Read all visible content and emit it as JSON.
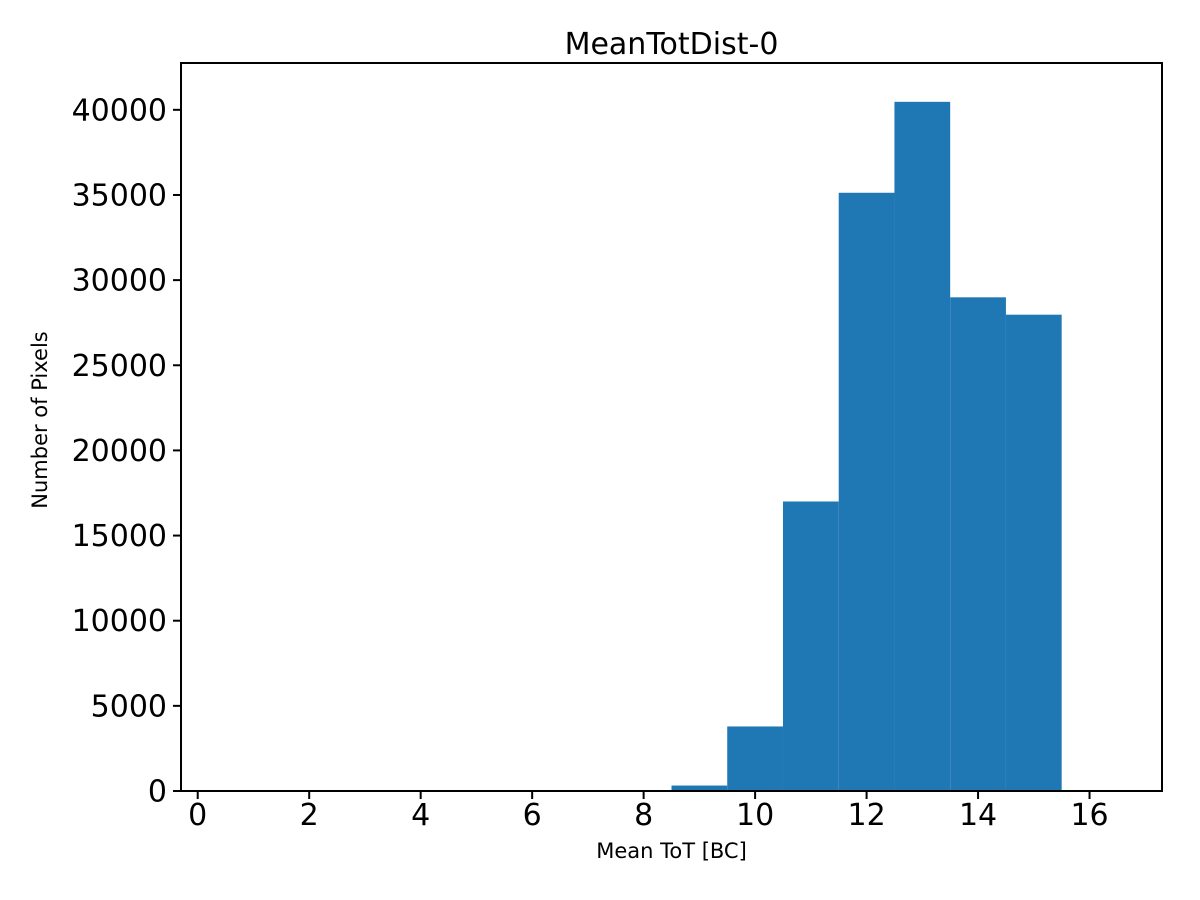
{
  "figure": {
    "background_color": "#ffffff",
    "text_color": "#000000"
  },
  "chart_data": {
    "type": "bar",
    "subtype": "histogram",
    "title": "MeanTotDist-0",
    "xlabel": "Mean ToT [BC]",
    "ylabel": "Number of Pixels",
    "bar_color": "#1f77b4",
    "axis_color": "#000000",
    "grid": false,
    "legend": null,
    "bin_edges": [
      8.5,
      9.5,
      10.5,
      11.5,
      12.5,
      13.5,
      14.5,
      15.5
    ],
    "counts": [
      320,
      3790,
      17000,
      35130,
      40470,
      28990,
      27970
    ],
    "xlim": [
      -0.3,
      17.3
    ],
    "ylim": [
      0,
      42750
    ],
    "xticks": [
      0,
      2,
      4,
      6,
      8,
      10,
      12,
      14,
      16
    ],
    "yticks": [
      0,
      5000,
      10000,
      15000,
      20000,
      25000,
      30000,
      35000,
      40000
    ]
  }
}
